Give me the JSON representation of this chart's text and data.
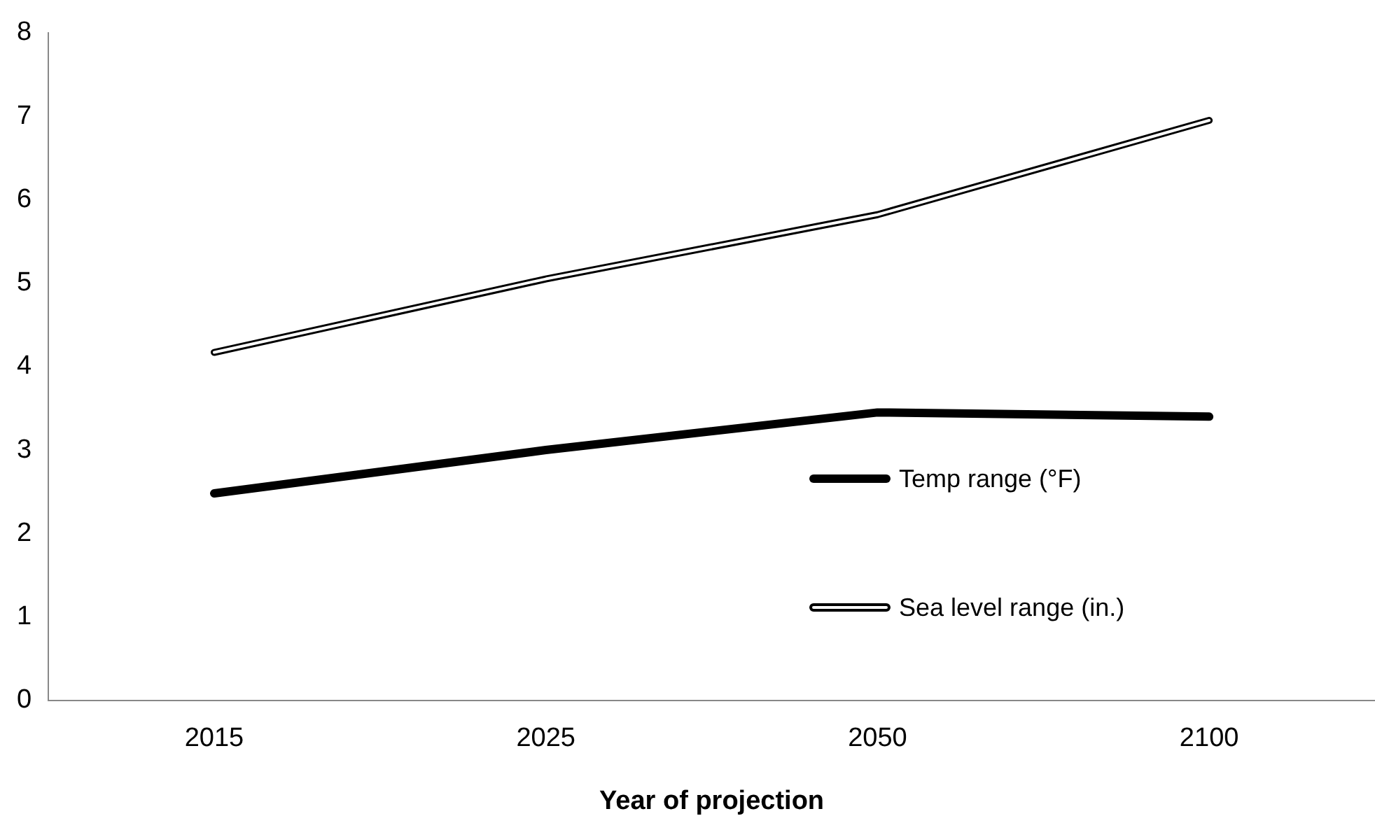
{
  "chart_data": {
    "type": "line",
    "xlabel": "Year of projection",
    "categories": [
      "2015",
      "2025",
      "2050",
      "2100"
    ],
    "series": [
      {
        "name": "Temp range (°F)",
        "color": "#000000",
        "values": [
          2.48,
          3.0,
          3.45,
          3.4
        ]
      },
      {
        "name": "Sea level range (in.)",
        "color": "#000000",
        "values": [
          4.17,
          5.05,
          5.82,
          6.95
        ]
      }
    ],
    "ylim": [
      0,
      8
    ],
    "yticks": [
      0,
      1,
      2,
      3,
      4,
      5,
      6,
      7,
      8
    ],
    "grid": false,
    "legend": "bottom right",
    "marker": "none",
    "line_style": "solid"
  }
}
